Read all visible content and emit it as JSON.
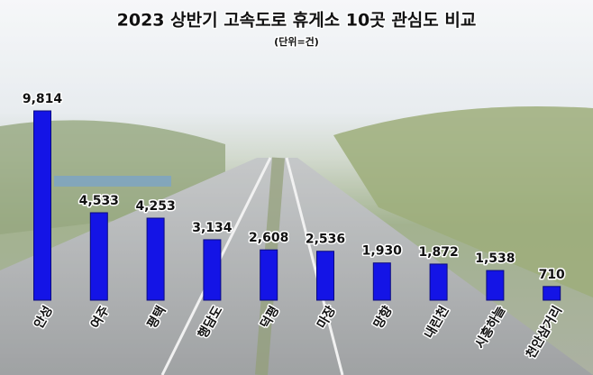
{
  "chart_data": {
    "type": "bar",
    "title": "2023 상반기 고속도로 휴게소 10곳 관심도 비교",
    "subtitle": "(단위=건)",
    "categories": [
      "안성",
      "여주",
      "평택",
      "행담도",
      "덕평",
      "마장",
      "망향",
      "내린천",
      "시흥하늘",
      "천안삼거리"
    ],
    "values": [
      9814,
      4533,
      4253,
      3134,
      2608,
      2536,
      1930,
      1872,
      1538,
      710
    ],
    "value_labels": [
      "9,814",
      "4,533",
      "4,253",
      "3,134",
      "2,608",
      "2,536",
      "1,930",
      "1,872",
      "1,538",
      "710"
    ],
    "color": "#1414e6"
  }
}
